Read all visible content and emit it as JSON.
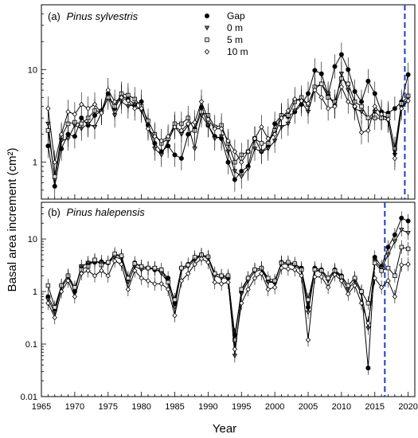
{
  "figure": {
    "ylabel": "Basal area increment (cm²)",
    "xlabel": "Year",
    "xticks": [
      "1965",
      "1970",
      "1975",
      "1980",
      "1985",
      "1990",
      "1995",
      "2000",
      "2005",
      "2010",
      "2015",
      "2020"
    ]
  },
  "legend": {
    "placement": "top-center of panel (a)",
    "entries": [
      {
        "name": "Gap",
        "marker": "filled-circle"
      },
      {
        "name": "0 m",
        "marker": "down-triangle"
      },
      {
        "name": "5 m",
        "marker": "square"
      },
      {
        "name": "10 m",
        "marker": "diamond"
      }
    ]
  },
  "chart_data": [
    {
      "type": "line",
      "panel": "a",
      "title_prefix": "(a)",
      "title_species": "Pinus sylvestris",
      "y_scale": "log",
      "xlim": [
        1965,
        2021
      ],
      "ylim": [
        0.4,
        50
      ],
      "yticks": [
        "1",
        "10"
      ],
      "ytick_values": [
        1,
        10
      ],
      "vline_x": 2019.5,
      "vline_color": "#1f3fbf",
      "x": [
        1966,
        1967,
        1968,
        1969,
        1970,
        1971,
        1972,
        1973,
        1974,
        1975,
        1976,
        1977,
        1978,
        1979,
        1980,
        1981,
        1982,
        1983,
        1984,
        1985,
        1986,
        1987,
        1988,
        1989,
        1990,
        1991,
        1992,
        1993,
        1994,
        1995,
        1996,
        1997,
        1998,
        1999,
        2000,
        2001,
        2002,
        2003,
        2004,
        2005,
        2006,
        2007,
        2008,
        2009,
        2010,
        2011,
        2012,
        2013,
        2014,
        2015,
        2016,
        2017,
        2018,
        2019,
        2020
      ],
      "series": [
        {
          "name": "Gap",
          "marker": "filled-circle",
          "values": [
            1.5,
            0.55,
            1.4,
            2.0,
            1.9,
            3.0,
            2.5,
            3.2,
            3.6,
            5.5,
            3.8,
            5.2,
            4.8,
            4.2,
            4.5,
            2.5,
            1.6,
            1.3,
            1.5,
            1.2,
            1.1,
            2.0,
            2.3,
            3.9,
            2.5,
            1.9,
            1.8,
            1.0,
            0.65,
            0.8,
            0.9,
            1.8,
            1.3,
            1.5,
            2.6,
            3.2,
            3.1,
            3.5,
            4.2,
            5.5,
            9.8,
            9.0,
            5.3,
            10.8,
            14.5,
            10.0,
            5.8,
            4.5,
            7.5,
            5.5,
            3.5,
            3.4,
            3.8,
            4.5,
            8.8
          ]
        },
        {
          "name": "0 m",
          "marker": "down-triangle",
          "values": [
            2.6,
            0.65,
            1.7,
            1.8,
            2.5,
            2.3,
            2.6,
            2.4,
            3.4,
            5.0,
            3.2,
            4.5,
            4.0,
            4.2,
            3.6,
            2.4,
            1.4,
            1.2,
            1.7,
            2.4,
            2.0,
            2.5,
            1.4,
            3.2,
            2.5,
            1.8,
            1.9,
            1.3,
            0.8,
            0.7,
            0.85,
            1.4,
            1.3,
            1.4,
            1.7,
            2.4,
            2.6,
            3.6,
            4.5,
            3.5,
            6.2,
            7.0,
            5.5,
            4.0,
            9.0,
            6.0,
            3.8,
            3.5,
            3.0,
            3.5,
            3.0,
            2.8,
            1.2,
            3.9,
            4.9
          ]
        },
        {
          "name": "5 m",
          "marker": "square",
          "values": [
            2.2,
            0.7,
            1.9,
            2.6,
            2.7,
            2.6,
            3.0,
            3.6,
            3.5,
            5.0,
            4.0,
            5.5,
            5.3,
            4.8,
            4.0,
            2.8,
            2.0,
            1.6,
            1.8,
            2.6,
            2.6,
            3.0,
            2.2,
            3.5,
            3.2,
            2.4,
            2.5,
            1.6,
            1.0,
            1.2,
            1.3,
            1.8,
            1.6,
            1.6,
            2.2,
            3.2,
            3.2,
            4.5,
            5.0,
            4.2,
            6.5,
            7.0,
            5.0,
            4.5,
            8.0,
            7.0,
            4.5,
            4.0,
            3.0,
            3.0,
            3.0,
            3.2,
            1.4,
            4.3,
            5.2
          ]
        },
        {
          "name": "10 m",
          "marker": "diamond",
          "values": [
            3.8,
            1.0,
            2.0,
            3.5,
            3.3,
            4.2,
            3.8,
            4.2,
            3.4,
            6.0,
            4.5,
            5.0,
            4.6,
            3.8,
            3.8,
            2.3,
            1.9,
            1.7,
            1.9,
            2.4,
            2.2,
            2.6,
            2.7,
            4.5,
            2.9,
            2.3,
            2.3,
            1.7,
            1.3,
            1.0,
            1.3,
            1.8,
            2.4,
            1.8,
            2.0,
            3.0,
            3.6,
            4.8,
            4.6,
            4.3,
            6.0,
            5.0,
            3.8,
            4.0,
            6.5,
            4.5,
            4.0,
            2.1,
            2.2,
            4.0,
            3.3,
            2.9,
            1.1,
            3.8,
            4.6
          ]
        }
      ]
    },
    {
      "type": "line",
      "panel": "b",
      "title_prefix": "(b)",
      "title_species": "Pinus halepensis",
      "y_scale": "log",
      "xlim": [
        1965,
        2021
      ],
      "ylim": [
        0.01,
        50
      ],
      "yticks": [
        "0.01",
        "0.1",
        "1",
        "10"
      ],
      "ytick_values": [
        0.01,
        0.1,
        1,
        10
      ],
      "vline_x": 2016.5,
      "vline_color": "#1f3fbf",
      "x": [
        1966,
        1967,
        1968,
        1969,
        1970,
        1971,
        1972,
        1973,
        1974,
        1975,
        1976,
        1977,
        1978,
        1979,
        1980,
        1981,
        1982,
        1983,
        1984,
        1985,
        1986,
        1987,
        1988,
        1989,
        1990,
        1991,
        1992,
        1993,
        1994,
        1995,
        1996,
        1997,
        1998,
        1999,
        2000,
        2001,
        2002,
        2003,
        2004,
        2005,
        2006,
        2007,
        2008,
        2009,
        2010,
        2011,
        2012,
        2013,
        2014,
        2015,
        2016,
        2017,
        2018,
        2019,
        2020
      ],
      "series": [
        {
          "name": "Gap",
          "marker": "filled-circle",
          "values": [
            0.8,
            0.45,
            1.3,
            2.0,
            1.0,
            3.0,
            3.5,
            3.6,
            3.7,
            3.5,
            5.0,
            4.6,
            1.8,
            3.5,
            3.0,
            2.8,
            2.6,
            2.5,
            1.8,
            0.6,
            2.8,
            3.3,
            4.2,
            5.0,
            4.5,
            2.2,
            2.0,
            1.8,
            0.15,
            1.0,
            1.8,
            2.6,
            2.8,
            1.6,
            1.5,
            3.6,
            3.5,
            3.3,
            2.8,
            0.5,
            2.8,
            2.6,
            1.8,
            2.6,
            2.0,
            1.3,
            1.8,
            1.0,
            0.035,
            4.5,
            3.0,
            7.0,
            12.0,
            25.0,
            22.0
          ]
        },
        {
          "name": "0 m",
          "marker": "down-triangle",
          "values": [
            0.7,
            0.4,
            1.2,
            1.8,
            1.1,
            3.0,
            3.5,
            3.8,
            3.5,
            3.5,
            4.5,
            4.2,
            1.5,
            3.0,
            2.6,
            2.8,
            2.8,
            2.2,
            1.5,
            0.5,
            2.6,
            3.0,
            4.0,
            4.8,
            4.3,
            2.0,
            1.8,
            1.8,
            0.06,
            0.9,
            1.6,
            2.4,
            2.6,
            1.5,
            1.5,
            3.4,
            3.3,
            3.1,
            2.5,
            0.4,
            2.5,
            2.4,
            1.6,
            2.4,
            1.8,
            1.1,
            1.6,
            0.9,
            0.2,
            3.8,
            2.8,
            5.0,
            9.0,
            15.0,
            13.0
          ]
        },
        {
          "name": "5 m",
          "marker": "square",
          "values": [
            1.3,
            0.5,
            1.3,
            2.0,
            1.2,
            2.6,
            3.0,
            4.0,
            3.2,
            3.6,
            5.2,
            4.8,
            1.8,
            3.4,
            3.0,
            2.8,
            2.8,
            2.6,
            1.5,
            0.7,
            2.8,
            3.2,
            4.5,
            5.0,
            4.6,
            2.2,
            2.0,
            2.0,
            0.12,
            1.1,
            1.8,
            2.6,
            2.8,
            1.8,
            1.6,
            3.5,
            3.6,
            3.4,
            2.6,
            0.7,
            2.6,
            2.5,
            1.8,
            2.5,
            1.9,
            1.3,
            1.8,
            1.0,
            0.6,
            3.5,
            2.5,
            2.8,
            2.0,
            7.0,
            6.5
          ]
        },
        {
          "name": "10 m",
          "marker": "diamond",
          "values": [
            0.6,
            0.32,
            1.0,
            1.6,
            0.8,
            2.2,
            2.5,
            2.0,
            2.5,
            2.0,
            3.8,
            3.3,
            1.1,
            2.5,
            1.8,
            1.6,
            1.4,
            1.4,
            1.1,
            0.35,
            1.6,
            2.2,
            3.3,
            4.2,
            3.6,
            1.5,
            1.4,
            1.5,
            0.08,
            0.6,
            1.1,
            1.8,
            2.2,
            1.1,
            1.2,
            2.8,
            2.7,
            2.6,
            2.0,
            0.12,
            1.9,
            1.9,
            1.2,
            2.1,
            1.6,
            0.9,
            1.3,
            0.6,
            0.25,
            1.8,
            1.2,
            1.6,
            0.8,
            3.2,
            3.3
          ]
        }
      ]
    }
  ]
}
